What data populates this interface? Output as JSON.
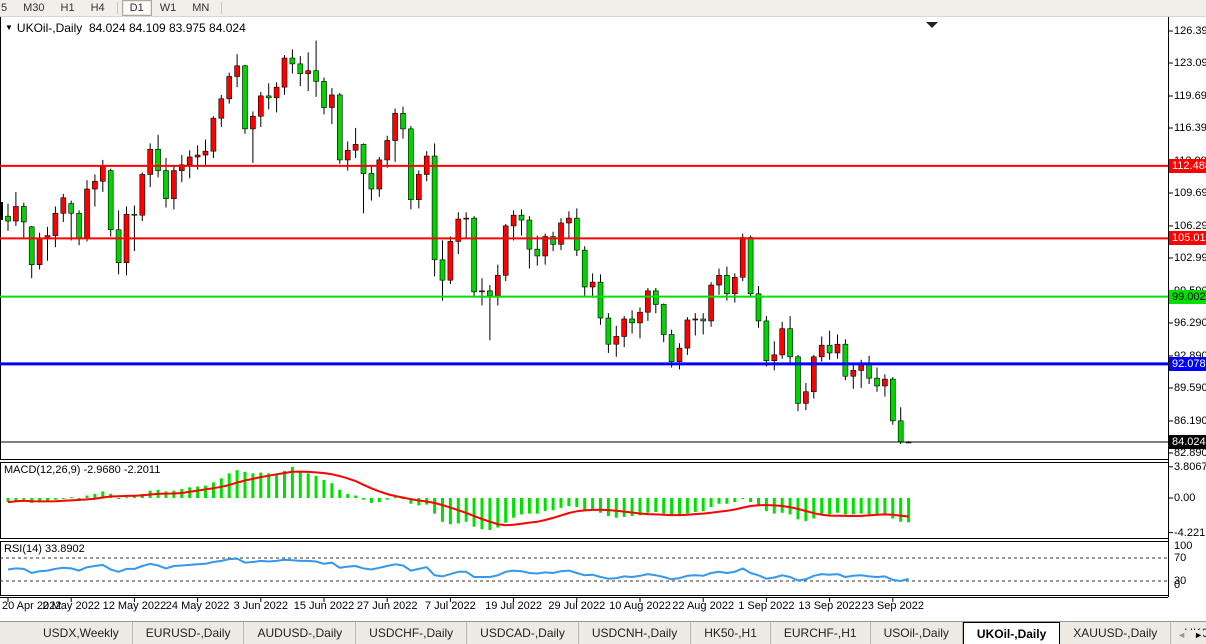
{
  "toolbar": {
    "timeframes": [
      {
        "label": "5",
        "active": false,
        "cut": true
      },
      {
        "label": "M30",
        "active": false
      },
      {
        "label": "H1",
        "active": false
      },
      {
        "label": "H4",
        "active": false
      },
      {
        "sep": true
      },
      {
        "label": "D1",
        "active": true
      },
      {
        "label": "W1",
        "active": false
      },
      {
        "label": "MN",
        "active": false
      },
      {
        "sep": true
      }
    ]
  },
  "chart": {
    "symbol_title": "UKOil-,Daily",
    "ohlc_title": "84.024 84.109 83.975 84.024",
    "macd_label": "MACD(12,26,9) -2.9680 -2.2011",
    "rsi_label": "RSI(14) 33.8902",
    "price_axis_labels": [
      "126.390",
      "123.090",
      "119.690",
      "116.390",
      "112.990",
      "109.690",
      "106.290",
      "102.990",
      "99.590",
      "96.290",
      "92.890",
      "89.590",
      "86.190",
      "82.890"
    ],
    "hlines": [
      {
        "price": 112.488,
        "label": "112.488",
        "color": "#FF0000",
        "text_color": "#FFFFFF",
        "lw": 2
      },
      {
        "price": 105.015,
        "label": "105.015",
        "color": "#FF0000",
        "text_color": "#FFFFFF",
        "lw": 2
      },
      {
        "price": 99.002,
        "label": "99.002",
        "color": "#00E000",
        "text_color": "#000000",
        "lw": 2
      },
      {
        "price": 92.078,
        "label": "92.078",
        "color": "#0000FF",
        "text_color": "#FFFFFF",
        "lw": 3
      },
      {
        "price": 84.024,
        "label": "84.024",
        "color": "#000000",
        "text_color": "#FFFFFF",
        "lw": 1
      }
    ]
  },
  "chart_data": {
    "type": "candlestick",
    "symbol": "UKOil-",
    "timeframe": "Daily",
    "bull_color": "#FF0000",
    "bear_color": "#00D300",
    "ylim": [
      82.0,
      126.39
    ],
    "x_tick_labels": [
      {
        "i": 0,
        "label": "20 Apr 2022"
      },
      {
        "i": 8,
        "label": "2 May 2022"
      },
      {
        "i": 16,
        "label": "12 May 2022"
      },
      {
        "i": 24,
        "label": "24 May 2022"
      },
      {
        "i": 32,
        "label": "3 Jun 2022"
      },
      {
        "i": 40,
        "label": "15 Jun 2022"
      },
      {
        "i": 48,
        "label": "27 Jun 2022"
      },
      {
        "i": 56,
        "label": "7 Jul 2022"
      },
      {
        "i": 64,
        "label": "19 Jul 2022"
      },
      {
        "i": 72,
        "label": "29 Jul 2022"
      },
      {
        "i": 80,
        "label": "10 Aug 2022"
      },
      {
        "i": 88,
        "label": "22 Aug 2022"
      },
      {
        "i": 96,
        "label": "1 Sep 2022"
      },
      {
        "i": 104,
        "label": "13 Sep 2022"
      },
      {
        "i": 112,
        "label": "23 Sep 2022"
      }
    ],
    "candles": [
      [
        "04-20",
        107.3,
        108.6,
        105.8,
        106.8
      ],
      [
        "04-21",
        106.8,
        109.8,
        106.3,
        108.3
      ],
      [
        "04-22",
        108.3,
        108.7,
        105.1,
        106.7
      ],
      [
        "04-25",
        106.2,
        106.3,
        100.9,
        102.3
      ],
      [
        "04-26",
        102.3,
        105.6,
        101.8,
        105.0
      ],
      [
        "04-27",
        105.0,
        106.2,
        102.7,
        105.3
      ],
      [
        "04-28",
        105.3,
        108.3,
        104.1,
        107.6
      ],
      [
        "04-29",
        107.6,
        109.6,
        106.7,
        109.2
      ],
      [
        "05-02",
        108.6,
        108.9,
        104.8,
        107.6
      ],
      [
        "05-03",
        107.6,
        107.9,
        104.3,
        105.0
      ],
      [
        "05-04",
        105.0,
        111.0,
        104.7,
        110.1
      ],
      [
        "05-05",
        110.1,
        111.6,
        108.3,
        110.9
      ],
      [
        "05-06",
        110.9,
        113.1,
        109.8,
        112.4
      ],
      [
        "05-09",
        112.0,
        112.2,
        105.2,
        105.9
      ],
      [
        "05-10",
        105.9,
        107.9,
        101.3,
        102.5
      ],
      [
        "05-11",
        102.5,
        108.3,
        101.2,
        107.5
      ],
      [
        "05-12",
        107.5,
        108.4,
        103.7,
        107.4
      ],
      [
        "05-13",
        107.4,
        111.8,
        106.8,
        111.6
      ],
      [
        "05-16",
        111.6,
        114.8,
        110.3,
        114.2
      ],
      [
        "05-17",
        114.2,
        115.7,
        111.3,
        112.0
      ],
      [
        "05-18",
        112.0,
        113.3,
        108.2,
        109.1
      ],
      [
        "05-19",
        109.1,
        112.5,
        108.0,
        112.0
      ],
      [
        "05-20",
        112.0,
        113.6,
        110.8,
        112.6
      ],
      [
        "05-23",
        112.6,
        114.1,
        111.2,
        113.4
      ],
      [
        "05-24",
        113.4,
        114.6,
        112.1,
        113.6
      ],
      [
        "05-25",
        113.6,
        115.2,
        112.6,
        114.0
      ],
      [
        "05-26",
        114.0,
        117.6,
        113.3,
        117.4
      ],
      [
        "05-27",
        117.4,
        119.8,
        116.5,
        119.4
      ],
      [
        "05-30",
        119.4,
        122.1,
        118.9,
        121.7
      ],
      [
        "05-31",
        121.7,
        124.0,
        120.6,
        122.8
      ],
      [
        "06-01",
        122.8,
        122.9,
        115.8,
        116.3
      ],
      [
        "06-02",
        116.3,
        118.1,
        112.8,
        117.6
      ],
      [
        "06-03",
        117.6,
        120.1,
        116.5,
        119.7
      ],
      [
        "06-06",
        119.7,
        121.0,
        118.3,
        119.5
      ],
      [
        "06-07",
        119.5,
        121.1,
        118.0,
        120.6
      ],
      [
        "06-08",
        120.6,
        123.9,
        119.8,
        123.6
      ],
      [
        "06-09",
        123.6,
        124.5,
        122.0,
        123.0
      ],
      [
        "06-10",
        123.0,
        123.8,
        120.7,
        122.0
      ],
      [
        "06-13",
        122.0,
        124.2,
        120.2,
        122.3
      ],
      [
        "06-14",
        122.3,
        125.4,
        119.6,
        121.2
      ],
      [
        "06-15",
        121.2,
        121.6,
        117.8,
        118.5
      ],
      [
        "06-16",
        118.5,
        120.5,
        116.8,
        119.8
      ],
      [
        "06-17",
        119.8,
        120.0,
        112.7,
        113.1
      ],
      [
        "06-20",
        113.1,
        115.0,
        112.0,
        114.1
      ],
      [
        "06-21",
        114.1,
        116.4,
        113.3,
        114.7
      ],
      [
        "06-22",
        114.7,
        114.8,
        107.6,
        111.7
      ],
      [
        "06-23",
        111.7,
        112.5,
        108.9,
        110.1
      ],
      [
        "06-24",
        110.1,
        113.4,
        109.3,
        113.1
      ],
      [
        "06-27",
        113.1,
        115.6,
        112.3,
        115.1
      ],
      [
        "06-28",
        115.1,
        118.4,
        112.9,
        117.9
      ],
      [
        "06-29",
        117.9,
        118.6,
        115.3,
        116.3
      ],
      [
        "06-30",
        116.3,
        116.6,
        108.0,
        109.0
      ],
      [
        "07-01",
        109.0,
        112.0,
        108.1,
        111.6
      ],
      [
        "07-04",
        111.6,
        114.0,
        110.9,
        113.5
      ],
      [
        "07-05",
        113.5,
        114.8,
        101.1,
        102.8
      ],
      [
        "07-06",
        102.8,
        104.8,
        98.6,
        100.7
      ],
      [
        "07-07",
        100.7,
        105.2,
        100.3,
        104.7
      ],
      [
        "07-08",
        104.7,
        107.7,
        103.4,
        107.0
      ],
      [
        "07-11",
        107.0,
        107.7,
        105.0,
        107.1
      ],
      [
        "07-12",
        107.1,
        107.3,
        98.9,
        99.5
      ],
      [
        "07-13",
        99.5,
        100.9,
        98.1,
        99.6
      ],
      [
        "07-14",
        99.6,
        100.2,
        94.5,
        99.1
      ],
      [
        "07-15",
        99.1,
        102.3,
        98.1,
        101.2
      ],
      [
        "07-18",
        101.2,
        106.5,
        100.6,
        106.3
      ],
      [
        "07-19",
        106.3,
        107.9,
        104.8,
        107.4
      ],
      [
        "07-20",
        107.4,
        108.0,
        105.3,
        106.9
      ],
      [
        "07-21",
        106.9,
        107.3,
        101.9,
        103.9
      ],
      [
        "07-22",
        103.9,
        105.3,
        102.2,
        103.2
      ],
      [
        "07-25",
        103.2,
        105.5,
        102.3,
        105.2
      ],
      [
        "07-26",
        105.2,
        105.7,
        103.7,
        104.4
      ],
      [
        "07-27",
        104.4,
        107.1,
        103.8,
        106.6
      ],
      [
        "07-28",
        106.6,
        107.8,
        105.1,
        107.1
      ],
      [
        "07-29",
        107.1,
        108.1,
        103.2,
        103.8
      ],
      [
        "08-01",
        103.8,
        104.2,
        99.1,
        100.0
      ],
      [
        "08-02",
        100.0,
        101.4,
        98.9,
        100.5
      ],
      [
        "08-03",
        100.5,
        101.3,
        96.1,
        96.8
      ],
      [
        "08-04",
        96.8,
        97.3,
        93.2,
        94.1
      ],
      [
        "08-05",
        94.1,
        96.0,
        92.8,
        94.9
      ],
      [
        "08-08",
        94.9,
        97.0,
        93.8,
        96.7
      ],
      [
        "08-09",
        96.7,
        97.6,
        95.2,
        96.3
      ],
      [
        "08-10",
        96.3,
        97.9,
        94.7,
        97.4
      ],
      [
        "08-11",
        97.4,
        99.9,
        96.5,
        99.6
      ],
      [
        "08-12",
        99.6,
        99.9,
        97.3,
        98.2
      ],
      [
        "08-15",
        98.2,
        98.3,
        94.3,
        95.1
      ],
      [
        "08-16",
        95.1,
        95.6,
        91.7,
        92.3
      ],
      [
        "08-17",
        92.3,
        94.2,
        91.5,
        93.7
      ],
      [
        "08-18",
        93.7,
        96.9,
        93.0,
        96.6
      ],
      [
        "08-19",
        96.6,
        97.3,
        95.0,
        96.7
      ],
      [
        "08-22",
        96.7,
        97.3,
        95.1,
        96.5
      ],
      [
        "08-23",
        96.5,
        100.5,
        95.9,
        100.2
      ],
      [
        "08-24",
        100.2,
        101.9,
        99.2,
        101.2
      ],
      [
        "08-25",
        101.2,
        102.1,
        98.6,
        99.3
      ],
      [
        "08-26",
        99.3,
        101.4,
        98.4,
        101.0
      ],
      [
        "08-29",
        101.0,
        105.5,
        100.6,
        105.1
      ],
      [
        "08-30",
        105.1,
        105.3,
        98.9,
        99.3
      ],
      [
        "08-31",
        99.3,
        100.1,
        95.8,
        96.5
      ],
      [
        "09-01",
        96.5,
        97.0,
        91.8,
        92.4
      ],
      [
        "09-02",
        92.4,
        94.4,
        91.4,
        93.0
      ],
      [
        "09-05",
        93.0,
        96.4,
        92.6,
        95.7
      ],
      [
        "09-06",
        95.7,
        97.0,
        92.1,
        92.8
      ],
      [
        "09-07",
        92.8,
        93.0,
        87.2,
        88.0
      ],
      [
        "09-08",
        88.0,
        90.1,
        87.3,
        89.2
      ],
      [
        "09-09",
        89.2,
        93.0,
        88.5,
        92.8
      ],
      [
        "09-12",
        92.8,
        94.9,
        92.3,
        94.0
      ],
      [
        "09-13",
        94.0,
        95.5,
        92.5,
        93.2
      ],
      [
        "09-14",
        93.2,
        95.1,
        92.6,
        94.1
      ],
      [
        "09-15",
        94.1,
        94.6,
        90.4,
        90.8
      ],
      [
        "09-16",
        90.8,
        92.0,
        89.5,
        91.4
      ],
      [
        "09-19",
        91.4,
        92.5,
        89.6,
        92.0
      ],
      [
        "09-20",
        92.0,
        92.9,
        90.0,
        90.6
      ],
      [
        "09-21",
        90.6,
        91.7,
        89.2,
        89.8
      ],
      [
        "09-22",
        89.8,
        91.0,
        88.7,
        90.5
      ],
      [
        "09-23",
        90.5,
        90.7,
        85.8,
        86.2
      ],
      [
        "09-26",
        86.2,
        87.6,
        83.8,
        84.0
      ],
      [
        "09-27",
        84.024,
        84.109,
        83.975,
        84.024
      ]
    ],
    "indicators": [
      {
        "name": "MACD",
        "params": "12,26,9",
        "current_main": -2.968,
        "current_signal": -2.2011,
        "histogram_color": "#00E000",
        "signal_color": "#FF0000",
        "scale_labels": [
          {
            "label": "3.8067",
            "v": 3.8067
          },
          {
            "label": "0.00",
            "v": 0
          },
          {
            "label": "-4.221",
            "v": -4.221
          }
        ],
        "main": [
          -0.5,
          -0.3,
          -0.2,
          -0.6,
          -0.5,
          -0.4,
          -0.2,
          0.0,
          0.1,
          0.0,
          0.3,
          0.5,
          0.8,
          0.5,
          0.0,
          0.1,
          0.2,
          0.5,
          0.9,
          1.0,
          0.8,
          0.9,
          1.1,
          1.3,
          1.4,
          1.5,
          1.9,
          2.4,
          3.0,
          3.4,
          3.2,
          3.0,
          3.1,
          3.0,
          3.0,
          3.3,
          3.8,
          3.2,
          3.0,
          2.7,
          2.2,
          1.8,
          1.0,
          0.5,
          0.3,
          -0.2,
          -0.6,
          -0.5,
          -0.2,
          0.1,
          0.0,
          -0.7,
          -0.9,
          -0.8,
          -1.9,
          -2.9,
          -3.2,
          -3.1,
          -2.9,
          -3.5,
          -3.8,
          -3.9,
          -3.6,
          -3.0,
          -2.4,
          -2.0,
          -1.9,
          -1.9,
          -1.6,
          -1.5,
          -1.2,
          -1.0,
          -1.1,
          -1.4,
          -1.5,
          -1.8,
          -2.2,
          -2.4,
          -2.3,
          -2.2,
          -2.1,
          -1.8,
          -1.7,
          -1.9,
          -2.2,
          -2.2,
          -1.9,
          -1.7,
          -1.6,
          -1.1,
          -0.7,
          -0.7,
          -0.5,
          -0.1,
          -0.5,
          -1.0,
          -1.6,
          -1.9,
          -1.8,
          -2.0,
          -2.6,
          -2.8,
          -2.5,
          -2.1,
          -2.0,
          -1.8,
          -2.0,
          -2.0,
          -1.9,
          -2.0,
          -2.1,
          -2.1,
          -2.5,
          -2.9,
          -2.968
        ]
      },
      {
        "name": "RSI",
        "params": "14",
        "current": 33.8902,
        "line_color": "#3498EB",
        "levels": [
          70,
          30
        ],
        "scale_labels": [
          {
            "label": "100",
            "v": 100
          },
          {
            "label": "70",
            "v": 70
          },
          {
            "label": "30",
            "v": 30
          },
          {
            "label": "0",
            "v": 0
          }
        ],
        "values": [
          50,
          52,
          51,
          44,
          47,
          48,
          51,
          53,
          52,
          48,
          54,
          56,
          58,
          50,
          46,
          51,
          51,
          56,
          60,
          57,
          52,
          56,
          57,
          58,
          59,
          60,
          63,
          65,
          68,
          69,
          62,
          63,
          65,
          64,
          65,
          67,
          66,
          65,
          65,
          64,
          60,
          62,
          53,
          55,
          56,
          52,
          50,
          53,
          56,
          59,
          57,
          48,
          51,
          54,
          40,
          38,
          42,
          46,
          46,
          37,
          37,
          37,
          40,
          46,
          48,
          47,
          44,
          43,
          45,
          44,
          47,
          48,
          44,
          40,
          41,
          37,
          34,
          35,
          38,
          37,
          39,
          42,
          40,
          37,
          33,
          35,
          39,
          40,
          39,
          44,
          46,
          44,
          46,
          52,
          44,
          40,
          34,
          36,
          40,
          37,
          31,
          33,
          39,
          42,
          41,
          42,
          37,
          39,
          40,
          38,
          37,
          38,
          32,
          30,
          33.89
        ]
      }
    ]
  },
  "bottom_tabs": {
    "tabs": [
      {
        "label": "USDX,Weekly"
      },
      {
        "label": "EURUSD-,Daily"
      },
      {
        "label": "AUDUSD-,Daily"
      },
      {
        "label": "USDCHF-,Daily"
      },
      {
        "label": "USDCAD-,Daily"
      },
      {
        "label": "USDCNH-,Daily"
      },
      {
        "label": "HK50-,H1"
      },
      {
        "label": "EURCHF-,H1"
      },
      {
        "label": "USOil-,Daily"
      },
      {
        "label": "UKOil-,Daily",
        "active": true
      },
      {
        "label": "XAUUSD-,Daily"
      },
      {
        "label": "UKOil-,Da"
      }
    ],
    "scroll_left": "◄",
    "scroll_right": "►"
  }
}
